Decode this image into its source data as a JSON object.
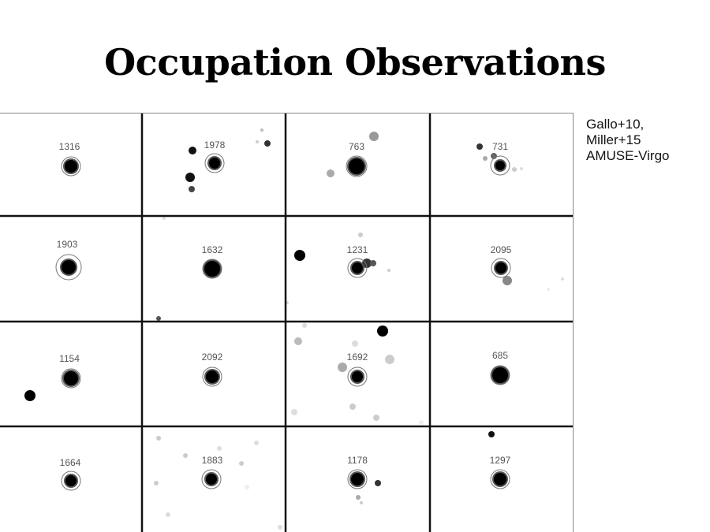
{
  "title": "Occupation Observations",
  "citation": {
    "lines": [
      "Gallo+10,",
      "Miller+15",
      "AMUSE-Virgo"
    ]
  },
  "panels": [
    {
      "label": "1316"
    },
    {
      "label": "1978"
    },
    {
      "label": "763"
    },
    {
      "label": "731"
    },
    {
      "label": "1903"
    },
    {
      "label": "1632"
    },
    {
      "label": "1231"
    },
    {
      "label": "2095"
    },
    {
      "label": "1154"
    },
    {
      "label": "2092"
    },
    {
      "label": "1692"
    },
    {
      "label": "685"
    },
    {
      "label": "1664"
    },
    {
      "label": "1883"
    },
    {
      "label": "1178"
    },
    {
      "label": "1297"
    }
  ]
}
